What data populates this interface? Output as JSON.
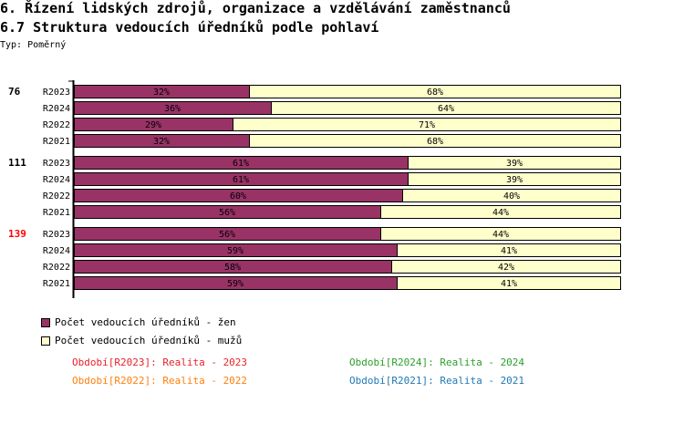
{
  "title": "6. Řízení lidských zdrojů, organizace a vzdělávání zaměstnanců",
  "subtitle": "6.7 Struktura vedoucích úředníků podle pohlaví",
  "type_label": "Typ: Poměrný",
  "chart_data": {
    "type": "bar",
    "orientation": "horizontal",
    "stacked": "percent",
    "xlim": [
      0,
      100
    ],
    "groups": [
      {
        "label": "76",
        "color": "#000000",
        "categories": [
          "R2023",
          "R2024",
          "R2022",
          "R2021"
        ],
        "zen": [
          32,
          36,
          29,
          32
        ],
        "muzu": [
          68,
          64,
          71,
          68
        ]
      },
      {
        "label": "111",
        "color": "#000000",
        "categories": [
          "R2023",
          "R2024",
          "R2022",
          "R2021"
        ],
        "zen": [
          61,
          61,
          60,
          56
        ],
        "muzu": [
          39,
          39,
          40,
          44
        ]
      },
      {
        "label": "139",
        "color": "#FF0000",
        "categories": [
          "R2023",
          "R2024",
          "R2022",
          "R2021"
        ],
        "zen": [
          56,
          59,
          58,
          59
        ],
        "muzu": [
          44,
          41,
          42,
          41
        ]
      }
    ],
    "series": [
      {
        "name": "Počet vedoucích úředníků - žen",
        "color": "#993366"
      },
      {
        "name": "Počet vedoucích úředníků - mužů",
        "color": "#FFFFCC"
      }
    ],
    "legend": "bottom-left"
  },
  "periods": [
    {
      "text": "Období[R2023]: Realita - 2023",
      "color": "#E8222A"
    },
    {
      "text": "Období[R2024]: Realita - 2024",
      "color": "#2CA02C"
    },
    {
      "text": "Období[R2022]: Realita - 2022",
      "color": "#FF7F0E"
    },
    {
      "text": "Období[R2021]: Realita - 2021",
      "color": "#1F77B4"
    }
  ]
}
